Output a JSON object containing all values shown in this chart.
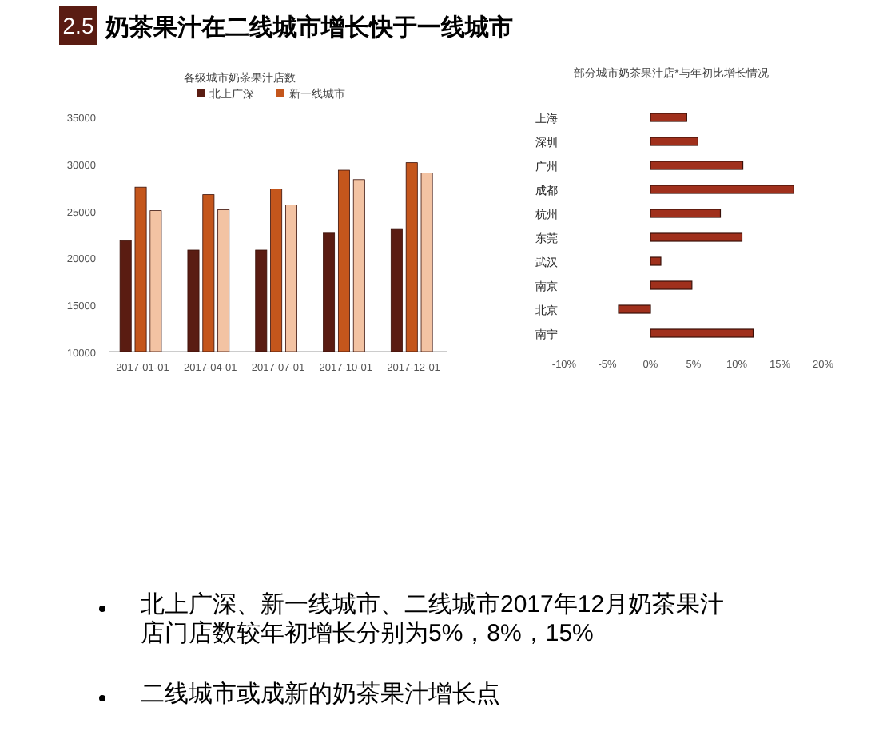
{
  "chart_data": [
    {
      "type": "bar",
      "title": "各级城市奶茶果汁店数",
      "categories": [
        "2017-01-01",
        "2017-04-01",
        "2017-07-01",
        "2017-10-01",
        "2017-12-01"
      ],
      "series": [
        {
          "name": "北上广深",
          "color": "#5a1c12",
          "values": [
            21800,
            20800,
            20800,
            22600,
            23000
          ]
        },
        {
          "name": "新一线城市",
          "color": "#c4561c",
          "values": [
            27500,
            26700,
            27300,
            29300,
            30100
          ]
        },
        {
          "color": "#f3c3a3",
          "values": [
            25000,
            25100,
            25600,
            28300,
            29000
          ]
        }
      ],
      "ylim": [
        10000,
        35000
      ],
      "yticks": [
        10000,
        15000,
        20000,
        25000,
        30000,
        35000
      ],
      "legend": "top",
      "annotations": [
        "2.5",
        "奶茶果汁在二线城市增长快于一线城市",
        "北上广深、新一线城市、二线城市2017年12月奶茶果汁店门店数较年初增长分别为5%，8%，15%",
        "二线城市或成新的奶茶果汁增长点"
      ]
    },
    {
      "type": "bar",
      "orientation": "horizontal",
      "title": "部分城市奶茶果汁店*与年初比增长情况",
      "categories": [
        "上海",
        "深圳",
        "广州",
        "成都",
        "杭州",
        "东莞",
        "武汉",
        "南京",
        "北京",
        "南宁"
      ],
      "values": [
        4.2,
        5.5,
        10.7,
        16.6,
        8.1,
        10.6,
        1.2,
        4.8,
        -3.7,
        11.9
      ],
      "color": "#a0301c",
      "xlim": [
        -10,
        20
      ],
      "xticks": [
        {
          "value": -10,
          "label": "-10%"
        },
        {
          "value": -5,
          "label": "-5%"
        },
        {
          "value": 0,
          "label": "0%"
        },
        {
          "value": 5,
          "label": "5%"
        },
        {
          "value": 10,
          "label": "10%"
        },
        {
          "value": 15,
          "label": "15%"
        },
        {
          "value": 20,
          "label": "20%"
        }
      ]
    }
  ]
}
